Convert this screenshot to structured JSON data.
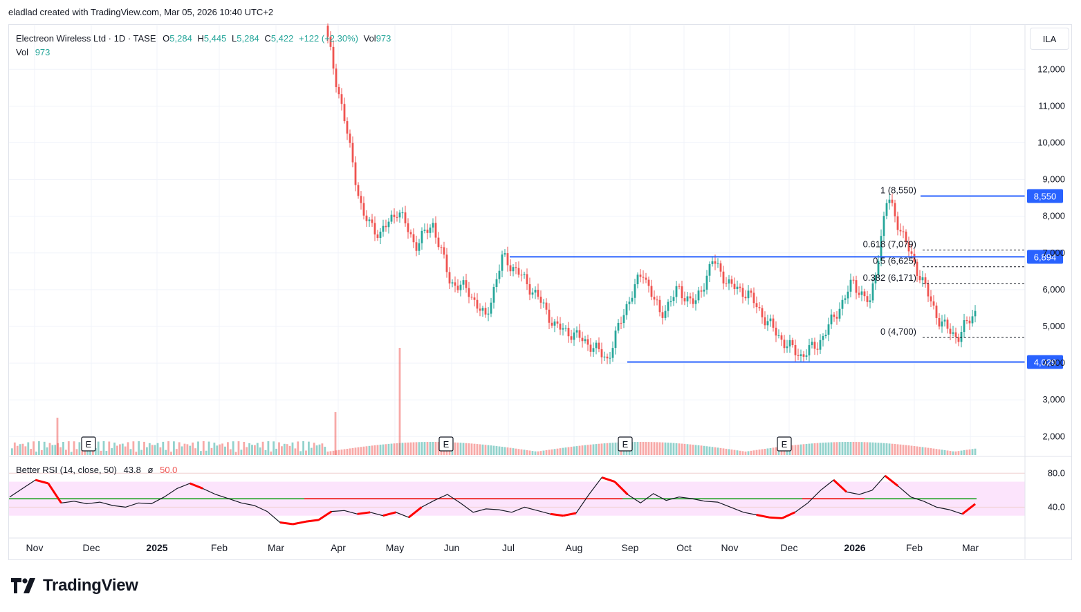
{
  "credit": "eladlad created with TradingView.com, Mar 05, 2026 10:40 UTC+2",
  "brand": "TradingView",
  "legend": {
    "title": "Electreon Wireless Ltd · 1D · TASE",
    "o_label": "O",
    "o": "5,284",
    "h_label": "H",
    "h": "5,445",
    "l_label": "L",
    "l": "5,284",
    "c_label": "C",
    "c": "5,422",
    "change": "+122 (+2.30%)",
    "vol_label": "Vol",
    "vol": "973",
    "vol2_label": "Vol",
    "vol2": "973"
  },
  "currency": "ILA",
  "rsi_legend": {
    "name": "Better RSI (14, close, 50)",
    "value": "43.8",
    "sep": "ø",
    "mid": "50.0"
  },
  "colors": {
    "up": "#26a69a",
    "down": "#ef5350",
    "level": "#2962ff",
    "rsi_line": "#131722",
    "rsi_bg": "#fce4fc"
  },
  "chart_data": {
    "type": "candlestick",
    "instrument": "Electreon Wireless Ltd",
    "timeframe": "1D",
    "exchange": "TASE",
    "ylim": [
      1700,
      13000
    ],
    "y_ticks": [
      "12,000",
      "11,000",
      "10,000",
      "9,000",
      "8,000",
      "7,000",
      "6,000",
      "5,000",
      "4,000",
      "3,000",
      "2,000"
    ],
    "x_ticks": [
      "Nov",
      "Dec",
      "2025",
      "Feb",
      "Mar",
      "Apr",
      "May",
      "Jun",
      "Jul",
      "Aug",
      "Sep",
      "Oct",
      "Nov",
      "Dec",
      "2026",
      "Feb",
      "Mar"
    ],
    "price_path": [
      [
        "Mar end",
        12800
      ],
      [
        "Apr",
        10500
      ],
      [
        "Apr",
        8000
      ],
      [
        "Apr",
        7500
      ],
      [
        "May",
        8200
      ],
      [
        "May",
        7200
      ],
      [
        "May",
        7800
      ],
      [
        "Jun",
        6200
      ],
      [
        "Jun",
        6000
      ],
      [
        "Jun",
        5200
      ],
      [
        "Jul",
        6900
      ],
      [
        "Jul",
        6400
      ],
      [
        "Jul",
        5800
      ],
      [
        "Aug",
        5000
      ],
      [
        "Aug",
        4800
      ],
      [
        "Aug",
        4500
      ],
      [
        "Sep",
        4100
      ],
      [
        "Sep",
        5500
      ],
      [
        "Sep",
        6500
      ],
      [
        "Sep",
        5300
      ],
      [
        "Oct",
        6000
      ],
      [
        "Oct",
        5600
      ],
      [
        "Oct",
        6800
      ],
      [
        "Nov",
        6100
      ],
      [
        "Nov",
        5900
      ],
      [
        "Dec",
        5200
      ],
      [
        "Dec",
        4600
      ],
      [
        "Dec",
        4200
      ],
      [
        "2026",
        4500
      ],
      [
        "2026",
        5300
      ],
      [
        "Jan",
        6200
      ],
      [
        "Jan",
        5600
      ],
      [
        "Feb",
        8550
      ],
      [
        "Feb",
        7300
      ],
      [
        "Feb",
        6200
      ],
      [
        "Mar",
        5100
      ],
      [
        "Mar",
        4700
      ],
      [
        "Mar",
        5422
      ]
    ],
    "price_labels": [
      {
        "label": "8,550",
        "value": 8550
      },
      {
        "label": "6,894",
        "value": 6894
      },
      {
        "label": "4,029",
        "value": 4029
      }
    ],
    "horizontal_levels": [
      {
        "value": 6894,
        "from": "Jul"
      },
      {
        "value": 4029,
        "from": "Sep"
      },
      {
        "value": 8550,
        "from": "Feb"
      }
    ],
    "fibonacci": [
      {
        "label": "1 (8,550)",
        "value": 8550
      },
      {
        "label": "0.618 (7,079)",
        "value": 7079
      },
      {
        "label": "0.5 (6,625)",
        "value": 6625
      },
      {
        "label": "0.382 (6,171)",
        "value": 6171
      },
      {
        "label": "0 (4,700)",
        "value": 4700
      }
    ],
    "earnings_markers": [
      "E",
      "E",
      "E",
      "E"
    ],
    "rsi": {
      "ylim": [
        20,
        90
      ],
      "ticks": [
        "80.0",
        "40.0"
      ],
      "overbought": 70,
      "oversold": 30,
      "mid": 50,
      "path": [
        52,
        62,
        72,
        68,
        45,
        47,
        44,
        46,
        42,
        40,
        45,
        44,
        52,
        62,
        68,
        62,
        55,
        50,
        45,
        42,
        35,
        22,
        20,
        23,
        25,
        35,
        36,
        32,
        34,
        30,
        34,
        28,
        40,
        48,
        55,
        45,
        34,
        38,
        37,
        34,
        40,
        36,
        32,
        30,
        33,
        55,
        75,
        70,
        55,
        45,
        56,
        48,
        52,
        50,
        47,
        46,
        40,
        34,
        31,
        28,
        27,
        34,
        45,
        60,
        72,
        58,
        55,
        60,
        77,
        65,
        52,
        47,
        40,
        37,
        32,
        43.8
      ]
    }
  }
}
